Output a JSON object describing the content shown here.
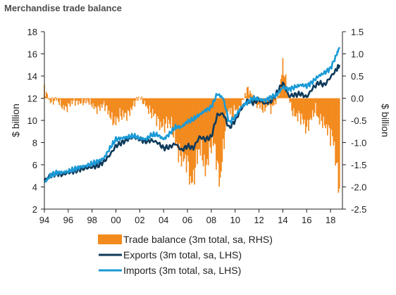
{
  "chart_data": {
    "type": "line",
    "title": "Merchandise trade balance",
    "ylabel": "$ billion",
    "y2label": "$ billion",
    "xlim": [
      1994,
      2019
    ],
    "ylim": [
      2,
      18
    ],
    "y2lim": [
      -2.5,
      1.5
    ],
    "x_ticks": [
      1994,
      1996,
      1998,
      2000,
      2002,
      2004,
      2006,
      2008,
      2010,
      2012,
      2014,
      2016,
      2018
    ],
    "x_tick_labels": [
      "94",
      "96",
      "98",
      "00",
      "02",
      "04",
      "06",
      "08",
      "10",
      "12",
      "14",
      "16",
      "18"
    ],
    "y_ticks": [
      "2",
      "4",
      "6",
      "8",
      "10",
      "12",
      "14",
      "16",
      "18"
    ],
    "y2_ticks": [
      "-2.5",
      "-2.0",
      "-1.5",
      "-1.0",
      "-0.5",
      "0.0",
      "0.5",
      "1.0",
      "1.5"
    ],
    "legend_position": "bottom",
    "series": [
      {
        "name": "Trade balance (3m total, sa, RHS)",
        "kind": "bar",
        "axis": "right",
        "color": "#f28a1e",
        "points": [
          [
            1994.0,
            0.25
          ],
          [
            1994.25,
            0.1
          ],
          [
            1994.5,
            -0.05
          ],
          [
            1994.75,
            -0.1
          ],
          [
            1995.0,
            -0.05
          ],
          [
            1995.5,
            -0.15
          ],
          [
            1996.0,
            -0.2
          ],
          [
            1996.5,
            -0.1
          ],
          [
            1997.0,
            -0.05
          ],
          [
            1997.5,
            -0.1
          ],
          [
            1998.0,
            -0.15
          ],
          [
            1998.5,
            -0.2
          ],
          [
            1999.0,
            -0.2
          ],
          [
            1999.5,
            -0.35
          ],
          [
            2000.0,
            -0.5
          ],
          [
            2000.5,
            -0.45
          ],
          [
            2001.0,
            -0.3
          ],
          [
            2001.5,
            -0.15
          ],
          [
            2002.0,
            0.0
          ],
          [
            2002.5,
            -0.1
          ],
          [
            2003.0,
            -0.4
          ],
          [
            2003.5,
            -0.5
          ],
          [
            2004.0,
            -0.55
          ],
          [
            2004.5,
            -0.65
          ],
          [
            2005.0,
            -0.85
          ],
          [
            2005.25,
            -1.1
          ],
          [
            2005.5,
            -1.3
          ],
          [
            2005.75,
            -1.5
          ],
          [
            2006.0,
            -1.55
          ],
          [
            2006.25,
            -1.85
          ],
          [
            2006.5,
            -1.7
          ],
          [
            2006.75,
            -1.3
          ],
          [
            2007.0,
            -1.2
          ],
          [
            2007.25,
            -1.4
          ],
          [
            2007.5,
            -1.7
          ],
          [
            2007.75,
            -1.2
          ],
          [
            2008.0,
            -0.9
          ],
          [
            2008.25,
            -1.0
          ],
          [
            2008.5,
            -1.65
          ],
          [
            2008.75,
            -2.0
          ],
          [
            2009.0,
            -1.1
          ],
          [
            2009.25,
            -0.4
          ],
          [
            2009.5,
            -0.2
          ],
          [
            2009.75,
            -0.45
          ],
          [
            2010.0,
            -0.3
          ],
          [
            2010.25,
            -0.35
          ],
          [
            2010.5,
            -0.1
          ],
          [
            2010.75,
            0.05
          ],
          [
            2011.0,
            0.2
          ],
          [
            2011.25,
            0.1
          ],
          [
            2011.5,
            0.0
          ],
          [
            2011.75,
            -0.15
          ],
          [
            2012.0,
            -0.1
          ],
          [
            2012.25,
            -0.2
          ],
          [
            2012.5,
            -0.3
          ],
          [
            2012.75,
            -0.15
          ],
          [
            2013.0,
            -0.25
          ],
          [
            2013.25,
            -0.1
          ],
          [
            2013.5,
            0.0
          ],
          [
            2013.75,
            0.25
          ],
          [
            2014.0,
            0.65
          ],
          [
            2014.25,
            0.35
          ],
          [
            2014.5,
            0.05
          ],
          [
            2014.75,
            -0.2
          ],
          [
            2015.0,
            -0.35
          ],
          [
            2015.25,
            -0.45
          ],
          [
            2015.5,
            -0.5
          ],
          [
            2015.75,
            -0.55
          ],
          [
            2016.0,
            -0.6
          ],
          [
            2016.25,
            -0.45
          ],
          [
            2016.5,
            -0.4
          ],
          [
            2016.75,
            -0.3
          ],
          [
            2017.0,
            -0.55
          ],
          [
            2017.25,
            -0.45
          ],
          [
            2017.5,
            -0.5
          ],
          [
            2017.75,
            -0.65
          ],
          [
            2018.0,
            -0.9
          ],
          [
            2018.25,
            -1.1
          ],
          [
            2018.5,
            -1.5
          ],
          [
            2018.75,
            -1.95
          ]
        ]
      },
      {
        "name": "Exports (3m total, sa, LHS)",
        "kind": "line",
        "axis": "left",
        "color": "#0f3a5a",
        "points": [
          [
            1994.0,
            4.6
          ],
          [
            1994.5,
            5.0
          ],
          [
            1995.0,
            5.2
          ],
          [
            1995.5,
            5.1
          ],
          [
            1996.0,
            5.3
          ],
          [
            1996.5,
            5.4
          ],
          [
            1997.0,
            5.6
          ],
          [
            1997.5,
            5.7
          ],
          [
            1998.0,
            5.8
          ],
          [
            1998.5,
            5.9
          ],
          [
            1999.0,
            6.3
          ],
          [
            1999.5,
            6.9
          ],
          [
            2000.0,
            7.7
          ],
          [
            2000.5,
            8.0
          ],
          [
            2001.0,
            8.3
          ],
          [
            2001.5,
            8.5
          ],
          [
            2002.0,
            8.3
          ],
          [
            2002.5,
            8.1
          ],
          [
            2003.0,
            8.2
          ],
          [
            2003.5,
            8.0
          ],
          [
            2004.0,
            7.5
          ],
          [
            2004.5,
            7.6
          ],
          [
            2005.0,
            7.9
          ],
          [
            2005.5,
            7.3
          ],
          [
            2006.0,
            7.7
          ],
          [
            2006.5,
            7.5
          ],
          [
            2007.0,
            8.5
          ],
          [
            2007.5,
            8.3
          ],
          [
            2008.0,
            8.5
          ],
          [
            2008.5,
            10.5
          ],
          [
            2009.0,
            10.6
          ],
          [
            2009.5,
            9.3
          ],
          [
            2010.0,
            10.0
          ],
          [
            2010.5,
            11.0
          ],
          [
            2011.0,
            11.8
          ],
          [
            2011.5,
            11.6
          ],
          [
            2012.0,
            11.9
          ],
          [
            2012.5,
            11.5
          ],
          [
            2013.0,
            11.7
          ],
          [
            2013.5,
            12.5
          ],
          [
            2014.0,
            13.4
          ],
          [
            2014.5,
            12.2
          ],
          [
            2015.0,
            12.3
          ],
          [
            2015.5,
            12.4
          ],
          [
            2016.0,
            12.1
          ],
          [
            2016.5,
            12.9
          ],
          [
            2017.0,
            13.4
          ],
          [
            2017.5,
            13.2
          ],
          [
            2018.0,
            13.9
          ],
          [
            2018.5,
            14.6
          ],
          [
            2018.75,
            15.0
          ]
        ]
      },
      {
        "name": "Imports (3m total, sa, LHS)",
        "kind": "line",
        "axis": "left",
        "color": "#1b9ad6",
        "points": [
          [
            1994.0,
            4.4
          ],
          [
            1994.5,
            5.0
          ],
          [
            1995.0,
            5.3
          ],
          [
            1995.5,
            5.3
          ],
          [
            1996.0,
            5.4
          ],
          [
            1996.5,
            5.6
          ],
          [
            1997.0,
            5.8
          ],
          [
            1997.5,
            5.9
          ],
          [
            1998.0,
            6.1
          ],
          [
            1998.5,
            6.3
          ],
          [
            1999.0,
            6.6
          ],
          [
            1999.5,
            7.5
          ],
          [
            2000.0,
            8.3
          ],
          [
            2000.5,
            8.4
          ],
          [
            2001.0,
            8.5
          ],
          [
            2001.5,
            8.6
          ],
          [
            2002.0,
            8.4
          ],
          [
            2002.5,
            8.3
          ],
          [
            2003.0,
            8.7
          ],
          [
            2003.5,
            8.7
          ],
          [
            2004.0,
            8.3
          ],
          [
            2004.5,
            8.8
          ],
          [
            2005.0,
            9.4
          ],
          [
            2005.5,
            9.4
          ],
          [
            2006.0,
            9.9
          ],
          [
            2006.5,
            10.1
          ],
          [
            2007.0,
            10.5
          ],
          [
            2007.5,
            10.9
          ],
          [
            2008.0,
            11.2
          ],
          [
            2008.5,
            12.4
          ],
          [
            2009.0,
            12.0
          ],
          [
            2009.5,
            9.8
          ],
          [
            2010.0,
            10.3
          ],
          [
            2010.5,
            11.2
          ],
          [
            2011.0,
            11.6
          ],
          [
            2011.5,
            12.0
          ],
          [
            2012.0,
            11.9
          ],
          [
            2012.5,
            11.8
          ],
          [
            2013.0,
            12.1
          ],
          [
            2013.5,
            12.3
          ],
          [
            2014.0,
            13.0
          ],
          [
            2014.5,
            12.8
          ],
          [
            2015.0,
            13.0
          ],
          [
            2015.5,
            13.2
          ],
          [
            2016.0,
            13.1
          ],
          [
            2016.5,
            13.5
          ],
          [
            2017.0,
            14.0
          ],
          [
            2017.5,
            14.3
          ],
          [
            2018.0,
            14.7
          ],
          [
            2018.5,
            15.9
          ],
          [
            2018.75,
            16.6
          ]
        ]
      }
    ]
  }
}
